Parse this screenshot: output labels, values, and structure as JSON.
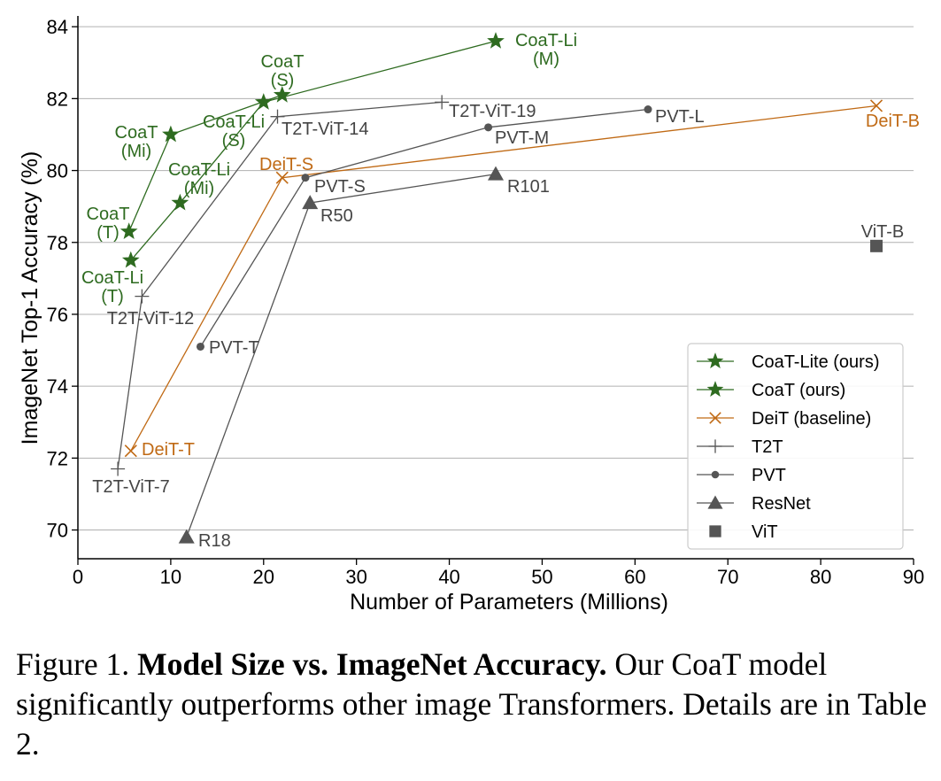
{
  "chart_data": {
    "type": "scatter",
    "title": "",
    "xlabel": "Number of Parameters (Millions)",
    "ylabel": "ImageNet Top-1 Accuracy (%)",
    "xlim": [
      0,
      90
    ],
    "ylim": [
      69.2,
      84.3
    ],
    "xticks": [
      0,
      10,
      20,
      30,
      40,
      50,
      60,
      70,
      80,
      90
    ],
    "yticks": [
      70,
      72,
      74,
      76,
      78,
      80,
      82,
      84
    ],
    "grid": "horizontal",
    "legend_position": "bottom-right",
    "series": [
      {
        "name": "CoaT-Lite (ours)",
        "color": "#2e6b20",
        "marker": "star",
        "connect": true,
        "points": [
          {
            "label": "CoaT-Li (T)",
            "x": 5.7,
            "y": 77.5
          },
          {
            "label": "CoaT-Li (Mi)",
            "x": 11.0,
            "y": 79.1
          },
          {
            "label": "CoaT-Li (S)",
            "x": 20.0,
            "y": 81.9
          },
          {
            "label": "CoaT-Li (M)",
            "x": 45.0,
            "y": 83.6
          }
        ]
      },
      {
        "name": "CoaT (ours)",
        "color": "#2e6b20",
        "marker": "star",
        "connect": true,
        "points": [
          {
            "label": "CoaT (T)",
            "x": 5.5,
            "y": 78.3
          },
          {
            "label": "CoaT (Mi)",
            "x": 10.0,
            "y": 81.0
          },
          {
            "label": "CoaT (S)",
            "x": 22.0,
            "y": 82.1
          }
        ]
      },
      {
        "name": "DeiT (baseline)",
        "color": "#c06a15",
        "marker": "x",
        "connect": true,
        "points": [
          {
            "label": "DeiT-T",
            "x": 5.7,
            "y": 72.2
          },
          {
            "label": "DeiT-S",
            "x": 22.0,
            "y": 79.8
          },
          {
            "label": "DeiT-B",
            "x": 86.0,
            "y": 81.8
          }
        ]
      },
      {
        "name": "T2T",
        "color": "#555555",
        "marker": "plus",
        "connect": true,
        "points": [
          {
            "label": "T2T-ViT-7",
            "x": 4.3,
            "y": 71.7
          },
          {
            "label": "T2T-ViT-12",
            "x": 6.9,
            "y": 76.5
          },
          {
            "label": "T2T-ViT-14",
            "x": 21.5,
            "y": 81.5
          },
          {
            "label": "T2T-ViT-19",
            "x": 39.2,
            "y": 81.9
          }
        ]
      },
      {
        "name": "PVT",
        "color": "#555555",
        "marker": "dot",
        "connect": true,
        "points": [
          {
            "label": "PVT-T",
            "x": 13.2,
            "y": 75.1
          },
          {
            "label": "PVT-S",
            "x": 24.5,
            "y": 79.8
          },
          {
            "label": "PVT-M",
            "x": 44.2,
            "y": 81.2
          },
          {
            "label": "PVT-L",
            "x": 61.4,
            "y": 81.7
          }
        ]
      },
      {
        "name": "ResNet",
        "color": "#555555",
        "marker": "triangle",
        "connect": true,
        "points": [
          {
            "label": "R18",
            "x": 11.7,
            "y": 69.8
          },
          {
            "label": "R50",
            "x": 25.0,
            "y": 79.1
          },
          {
            "label": "R101",
            "x": 45.0,
            "y": 79.9
          }
        ]
      },
      {
        "name": "ViT",
        "color": "#555555",
        "marker": "square",
        "connect": false,
        "points": [
          {
            "label": "ViT-B",
            "x": 86.0,
            "y": 77.9
          }
        ]
      }
    ]
  },
  "caption": {
    "prefix": "Figure 1. ",
    "bold": "Model Size vs. ImageNet Accuracy.",
    "rest": " Our CoaT model significantly outperforms other image Transformers. Details are in Table 2."
  }
}
